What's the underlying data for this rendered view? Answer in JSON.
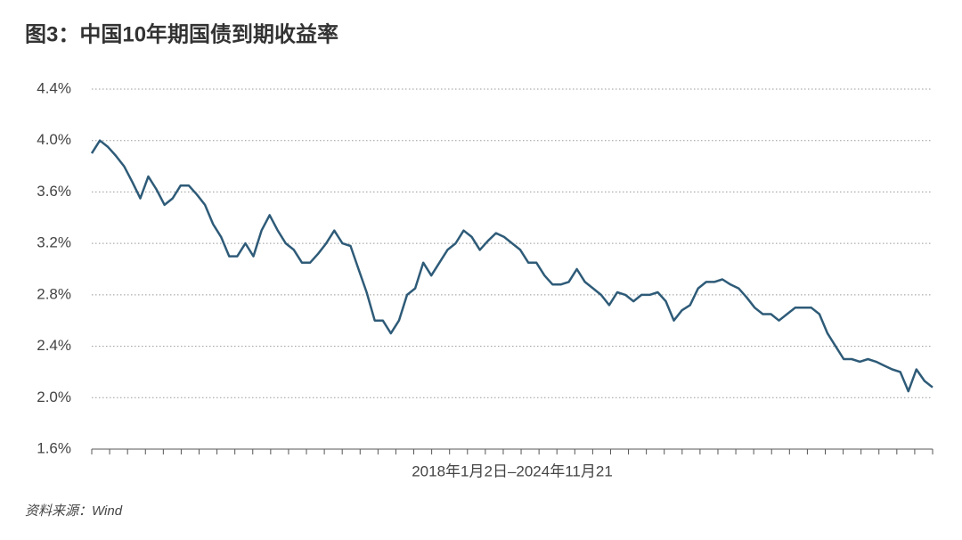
{
  "chart_data": {
    "type": "line",
    "title": "图3：中国10年期国债到期收益率",
    "x_label": "2018年1月2日–2024年11月21",
    "source": "资料来源：Wind",
    "series": [
      {
        "name": "中国10年期国债到期收益率",
        "color": "#2e5b78",
        "values": [
          3.9,
          4.0,
          3.95,
          3.88,
          3.8,
          3.68,
          3.55,
          3.72,
          3.62,
          3.5,
          3.55,
          3.65,
          3.65,
          3.58,
          3.5,
          3.35,
          3.25,
          3.1,
          3.1,
          3.2,
          3.1,
          3.3,
          3.42,
          3.3,
          3.2,
          3.15,
          3.05,
          3.05,
          3.12,
          3.2,
          3.3,
          3.2,
          3.18,
          3.0,
          2.82,
          2.6,
          2.6,
          2.5,
          2.6,
          2.8,
          2.85,
          3.05,
          2.95,
          3.05,
          3.15,
          3.2,
          3.3,
          3.25,
          3.15,
          3.22,
          3.28,
          3.25,
          3.2,
          3.15,
          3.05,
          3.05,
          2.95,
          2.88,
          2.88,
          2.9,
          3.0,
          2.9,
          2.85,
          2.8,
          2.72,
          2.82,
          2.8,
          2.75,
          2.8,
          2.8,
          2.82,
          2.75,
          2.6,
          2.68,
          2.72,
          2.85,
          2.9,
          2.9,
          2.92,
          2.88,
          2.85,
          2.78,
          2.7,
          2.65,
          2.65,
          2.6,
          2.65,
          2.7,
          2.7,
          2.7,
          2.65,
          2.5,
          2.4,
          2.3,
          2.3,
          2.28,
          2.3,
          2.28,
          2.25,
          2.22,
          2.2,
          2.05,
          2.22,
          2.13,
          2.08
        ]
      }
    ],
    "ylim": [
      1.6,
      4.4
    ],
    "yticks": [
      {
        "value": 1.6,
        "label": "1.6%"
      },
      {
        "value": 2.0,
        "label": "2.0%"
      },
      {
        "value": 2.4,
        "label": "2.4%"
      },
      {
        "value": 2.8,
        "label": "2.8%"
      },
      {
        "value": 3.2,
        "label": "3.2%"
      },
      {
        "value": 3.6,
        "label": "3.6%"
      },
      {
        "value": 4.0,
        "label": "4.0%"
      },
      {
        "value": 4.4,
        "label": "4.4%"
      }
    ],
    "grid": true
  }
}
